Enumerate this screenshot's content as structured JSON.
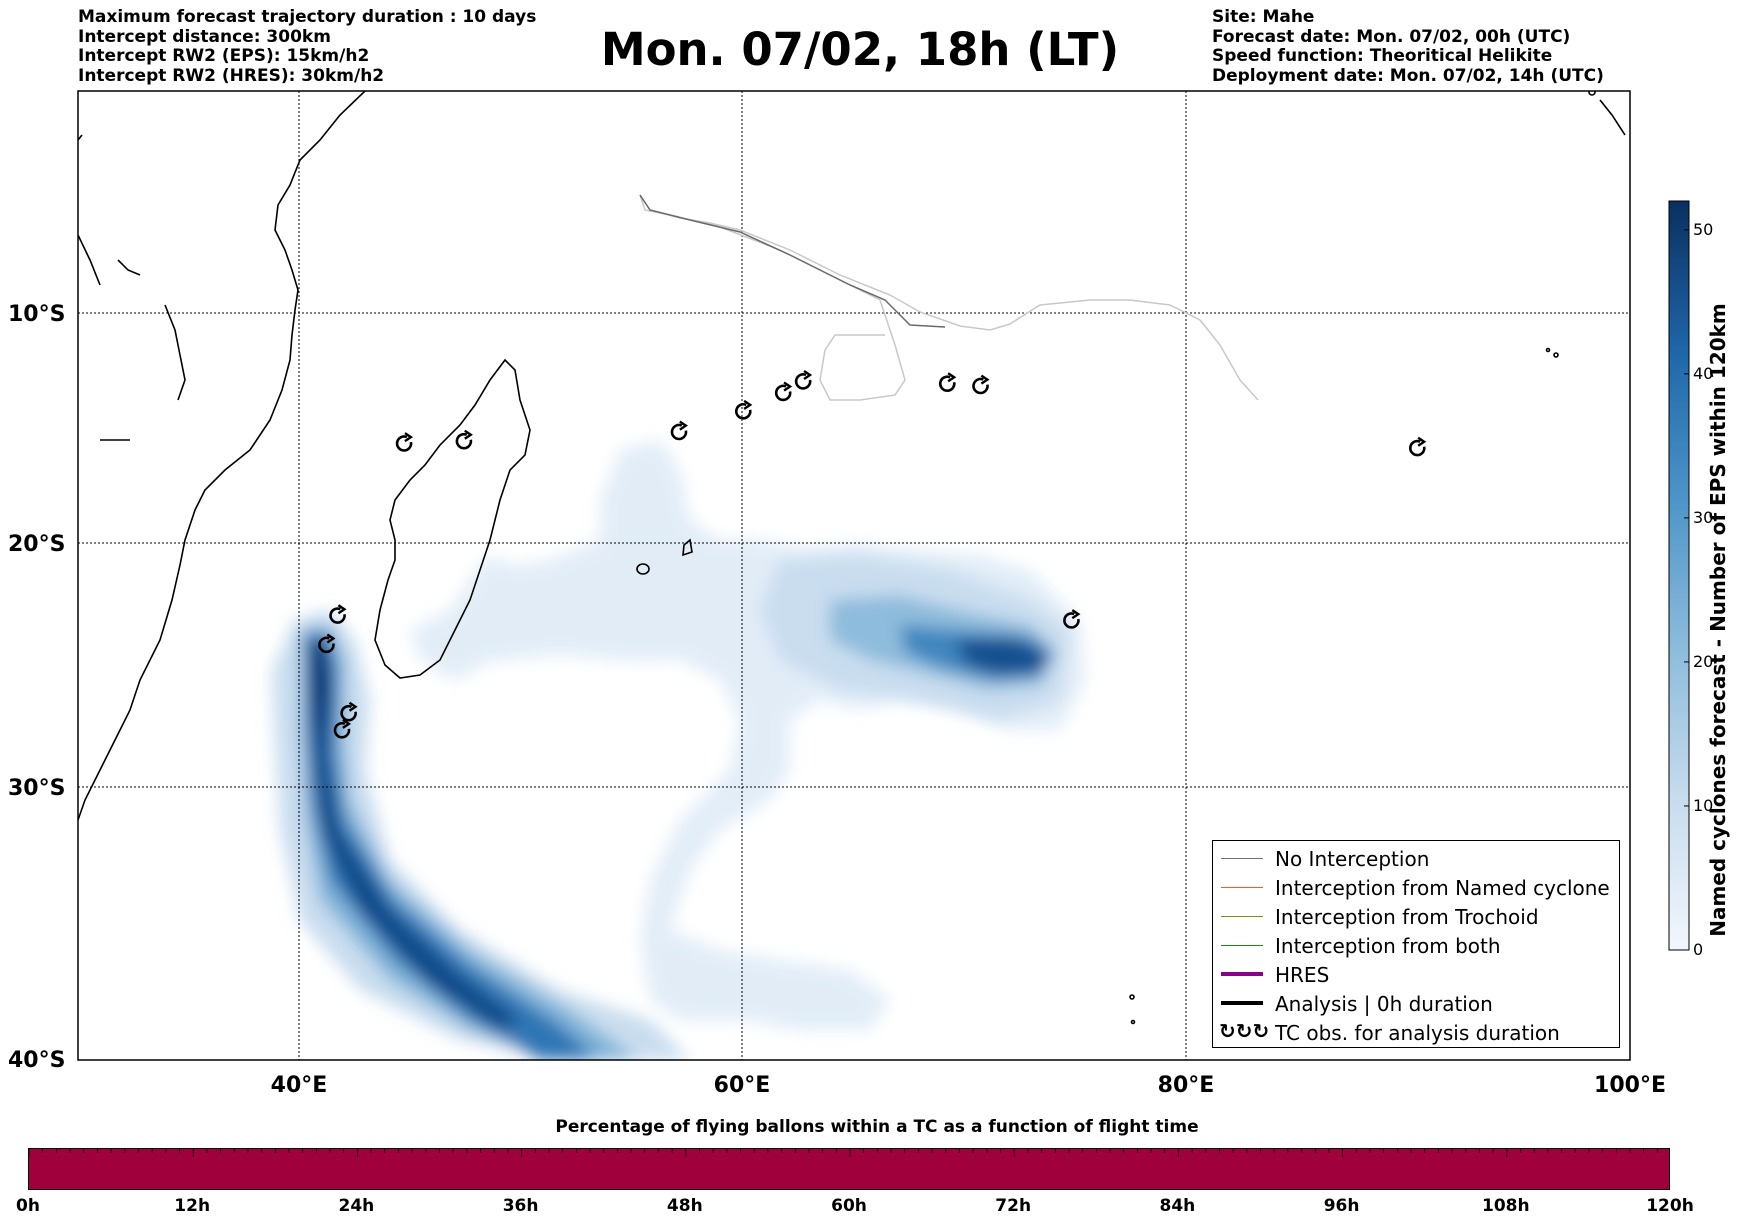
{
  "header": {
    "left_lines": [
      "Maximum forecast trajectory duration : 10 days",
      "Intercept distance: 300km",
      "Intercept RW2 (EPS):  15km/h2",
      "Intercept RW2 (HRES): 30km/h2"
    ],
    "title": "Mon. 07/02, 18h (LT)",
    "right_lines": [
      "Site: Mahe",
      "Forecast date: Mon. 07/02, 00h (UTC)",
      "Speed function: Theoritical Helikite",
      "Deployment date: Mon. 07/02, 14h (UTC)"
    ]
  },
  "map": {
    "lon_range": [
      30,
      100
    ],
    "lat_range": [
      0,
      -40
    ],
    "lat_labels": [
      "10°S",
      "20°S",
      "30°S",
      "40°S"
    ],
    "lon_labels": [
      "40°E",
      "60°E",
      "80°E",
      "100°E"
    ],
    "gridline_lats": [
      -10,
      -20,
      -30
    ],
    "gridline_lons": [
      40,
      60,
      80
    ],
    "tc_observations": [
      {
        "lon": 44.7,
        "lat": -15.7
      },
      {
        "lon": 47.4,
        "lat": -15.6
      },
      {
        "lon": 57.1,
        "lat": -15.2
      },
      {
        "lon": 60.0,
        "lat": -14.3
      },
      {
        "lon": 61.8,
        "lat": -13.5
      },
      {
        "lon": 62.7,
        "lat": -13.0
      },
      {
        "lon": 69.2,
        "lat": -13.1
      },
      {
        "lon": 70.7,
        "lat": -13.2
      },
      {
        "lon": 90.4,
        "lat": -15.9
      },
      {
        "lon": 74.8,
        "lat": -23.2
      },
      {
        "lon": 41.2,
        "lat": -24.2
      },
      {
        "lon": 41.7,
        "lat": -23.0
      },
      {
        "lon": 42.2,
        "lat": -27.0
      },
      {
        "lon": 41.9,
        "lat": -27.7
      }
    ],
    "colors": {
      "no_interception": "#707070",
      "named_cyclone": "#ff5a14",
      "trochoid": "#8a8a10",
      "both": "#1a8a1a",
      "hres": "#8b008b",
      "analysis": "#000000"
    }
  },
  "legend": {
    "items": [
      {
        "label": "No Interception",
        "color": "#707070",
        "width": 1.5
      },
      {
        "label": "Interception from Named cyclone",
        "color": "#ff5a14",
        "width": 1.5
      },
      {
        "label": "Interception from Trochoid",
        "color": "#8a8a10",
        "width": 1.5
      },
      {
        "label": "Interception from both",
        "color": "#1a8a1a",
        "width": 1.5
      },
      {
        "label": "HRES",
        "color": "#8b008b",
        "width": 4
      },
      {
        "label": "Analysis | 0h duration",
        "color": "#000000",
        "width": 4
      }
    ],
    "tc_symbol": "↻↻↻",
    "tc_label": "TC obs. for analysis duration"
  },
  "colorbar": {
    "label": "Named cyclones forecast - Number of EPS within 120km",
    "ticks": [
      "0",
      "10",
      "20",
      "30",
      "40",
      "50"
    ],
    "min": 0,
    "max": 52
  },
  "flight_bar": {
    "title": "Percentage of flying ballons within a TC as a function of flight time",
    "ticks": [
      "0h",
      "12h",
      "24h",
      "36h",
      "48h",
      "60h",
      "72h",
      "84h",
      "96h",
      "108h",
      "120h"
    ],
    "fill_fraction": 1.0,
    "fill_color": "#a0003c"
  }
}
